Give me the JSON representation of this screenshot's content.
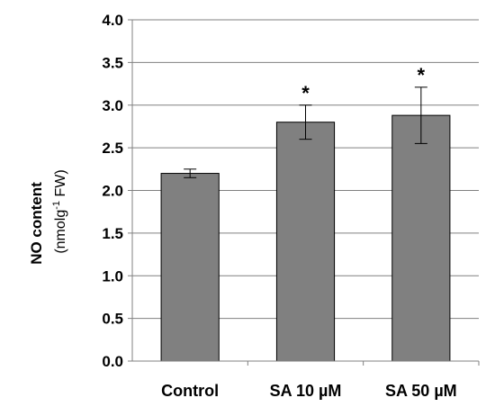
{
  "chart_data": {
    "type": "bar",
    "categories": [
      "Control",
      "SA 10 µM",
      "SA 50 µM"
    ],
    "values": [
      2.2,
      2.8,
      2.88
    ],
    "errors": [
      0.05,
      0.2,
      0.33
    ],
    "significance": [
      "",
      "*",
      "*"
    ],
    "ylabel": "NO content",
    "ylabel_unit_pre": "(nmolg",
    "ylabel_unit_sup": "-1",
    "ylabel_unit_post": " FW)",
    "ylim": [
      0,
      4.0
    ],
    "yticks": [
      "0.0",
      "0.5",
      "1.0",
      "1.5",
      "2.0",
      "2.5",
      "3.0",
      "3.5",
      "4.0"
    ],
    "grid": true,
    "bar_color": "#808080"
  }
}
